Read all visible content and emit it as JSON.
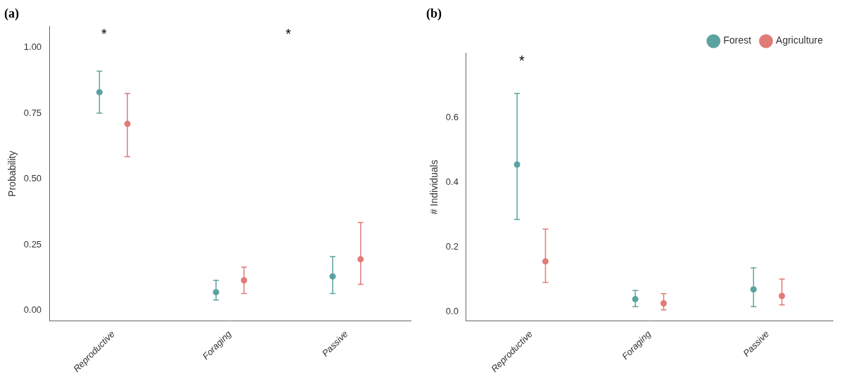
{
  "chart_data": [
    {
      "type": "errorbar",
      "title": "(a)",
      "ylabel": "Probability",
      "categories": [
        "Reproductive",
        "Foraging",
        "Passive"
      ],
      "series": [
        {
          "name": "Forest",
          "color": "#5ba3a0",
          "values": [
            0.83,
            0.07,
            0.13
          ],
          "ci_low": [
            0.75,
            0.04,
            0.065
          ],
          "ci_high": [
            0.91,
            0.115,
            0.205
          ]
        },
        {
          "name": "Agriculture",
          "color": "#e07b77",
          "values": [
            0.71,
            0.115,
            0.195
          ],
          "ci_low": [
            0.585,
            0.065,
            0.1
          ],
          "ci_high": [
            0.825,
            0.165,
            0.335
          ]
        }
      ],
      "annotations": [
        {
          "text": "*",
          "x": -0.08
        },
        {
          "text": "*",
          "x": 1.5
        }
      ],
      "ylim": [
        -0.04,
        1.08
      ],
      "yticks": [
        {
          "value": 0,
          "label": "0.00"
        },
        0.25,
        {
          "value": 0.5,
          "label": "0.50"
        },
        0.75,
        {
          "value": 1,
          "label": "1.00"
        }
      ],
      "grid": false
    },
    {
      "type": "errorbar",
      "title": "(b)",
      "ylabel": "# Individuals",
      "categories": [
        "Reproductive",
        "Foraging",
        "Passive"
      ],
      "series": [
        {
          "name": "Forest",
          "color": "#5ba3a0",
          "values": [
            0.455,
            0.038,
            0.068
          ],
          "ci_low": [
            0.285,
            0.015,
            0.015
          ],
          "ci_high": [
            0.675,
            0.065,
            0.135
          ]
        },
        {
          "name": "Agriculture",
          "color": "#e07b77",
          "values": [
            0.155,
            0.025,
            0.048
          ],
          "ci_low": [
            0.09,
            0.005,
            0.02
          ],
          "ci_high": [
            0.255,
            0.055,
            0.1
          ]
        }
      ],
      "annotations": [
        {
          "text": "*",
          "x": -0.08
        }
      ],
      "ylim": [
        -0.03,
        0.8
      ],
      "yticks": [
        {
          "value": 0,
          "label": "0.0"
        },
        0.2,
        0.4,
        0.6
      ],
      "grid": false,
      "legend": "upper right"
    }
  ]
}
